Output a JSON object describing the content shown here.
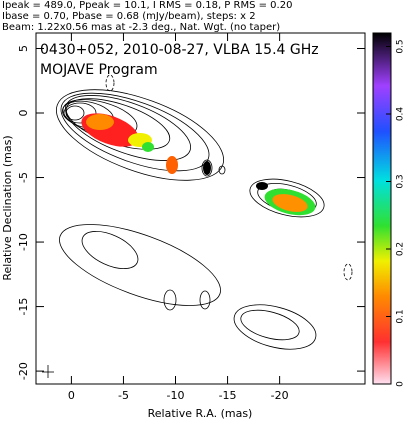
{
  "header": {
    "lines": [
      "Ipeak = 489.0, Ppeak = 10.1, I RMS = 0.18, P RMS = 0.20",
      "Ibase = 0.70, Pbase = 0.68 (mJy/beam), steps: x 2",
      "Beam: 1.22x0.56 mas at -2.3 deg., Nat. Wgt. (no taper)"
    ]
  },
  "chart_data": {
    "type": "contour",
    "annotations": [
      "0430+052, 2010-08-27, VLBA 15.4 GHz",
      "MOJAVE Program"
    ],
    "x_label": "Relative R.A. (mas)",
    "y_label": "Relative Declination (mas)",
    "xlim": [
      3.4,
      -28.2
    ],
    "xticks": [
      0,
      -5,
      -10,
      -15,
      -20
    ],
    "ylim": [
      -21,
      6.2
    ],
    "yticks": [
      5,
      0,
      -5,
      -10,
      -15,
      -20
    ],
    "colorbar": {
      "lim": [
        0,
        0.52
      ],
      "ticks": [
        0,
        0.1,
        0.2,
        0.3,
        0.4,
        0.5
      ]
    }
  }
}
